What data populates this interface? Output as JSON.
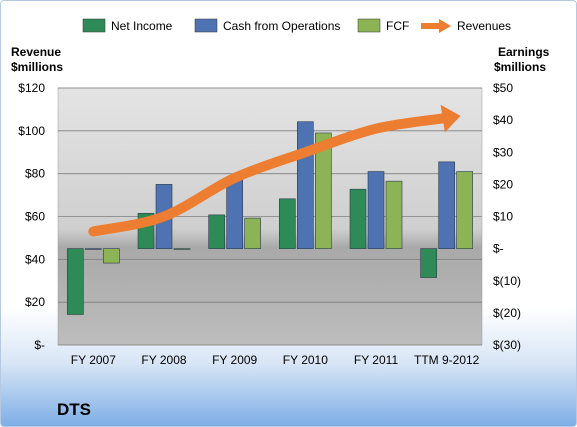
{
  "chart_data": {
    "type": "bar",
    "company": "DTS",
    "categories": [
      "FY 2007",
      "FY 2008",
      "FY 2009",
      "FY 2010",
      "FY 2011",
      "TTM 9-2012"
    ],
    "left_axis": {
      "label_line1": "Revenue",
      "label_line2": "$millions",
      "ticks": [
        "$-",
        "$20",
        "$40",
        "$60",
        "$80",
        "$100",
        "$120"
      ],
      "min": 0,
      "max": 120
    },
    "right_axis": {
      "label_line1": "Earnings",
      "label_line2": "$millions",
      "ticks": [
        "$(30)",
        "$(20)",
        "$(10)",
        "$-",
        "$10",
        "$20",
        "$30",
        "$40",
        "$50"
      ],
      "min": -30,
      "max": 50
    },
    "series": [
      {
        "name": "Net Income",
        "axis": "right",
        "color": "#2e8b57",
        "values": [
          -20.5,
          11,
          10.5,
          15.5,
          18.5,
          -9
        ]
      },
      {
        "name": "Cash from Operations",
        "axis": "right",
        "color": "#4f72b3",
        "values": [
          0,
          20,
          21.5,
          39.5,
          24,
          27
        ]
      },
      {
        "name": "FCF",
        "axis": "right",
        "color": "#8cb356",
        "values": [
          -4.5,
          -0.3,
          9.5,
          36,
          21,
          24
        ]
      },
      {
        "name": "Revenues",
        "axis": "left",
        "type": "line",
        "color": "#ed7d31",
        "values": [
          53,
          60,
          78,
          90,
          101,
          106
        ]
      }
    ],
    "grid": true
  }
}
